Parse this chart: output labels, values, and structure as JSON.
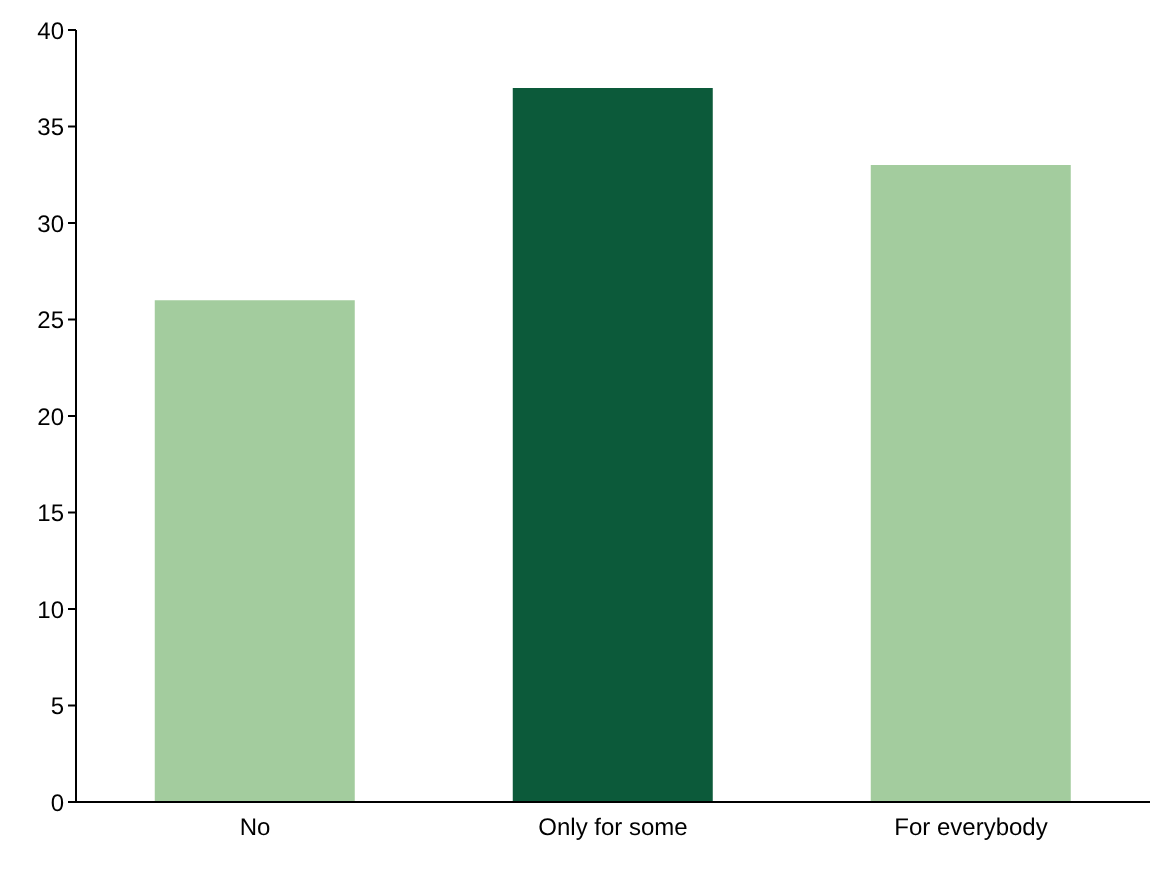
{
  "chart_data": {
    "type": "bar",
    "categories": [
      "No",
      "Only for some",
      "For everybody"
    ],
    "values": [
      26,
      37,
      33
    ],
    "colors": [
      "#a3cc9e",
      "#0c5a3a",
      "#a3cc9e"
    ],
    "ylim": [
      0,
      40
    ],
    "yticks": [
      0,
      5,
      10,
      15,
      20,
      25,
      30,
      35,
      40
    ],
    "grid": false,
    "legend": false
  }
}
